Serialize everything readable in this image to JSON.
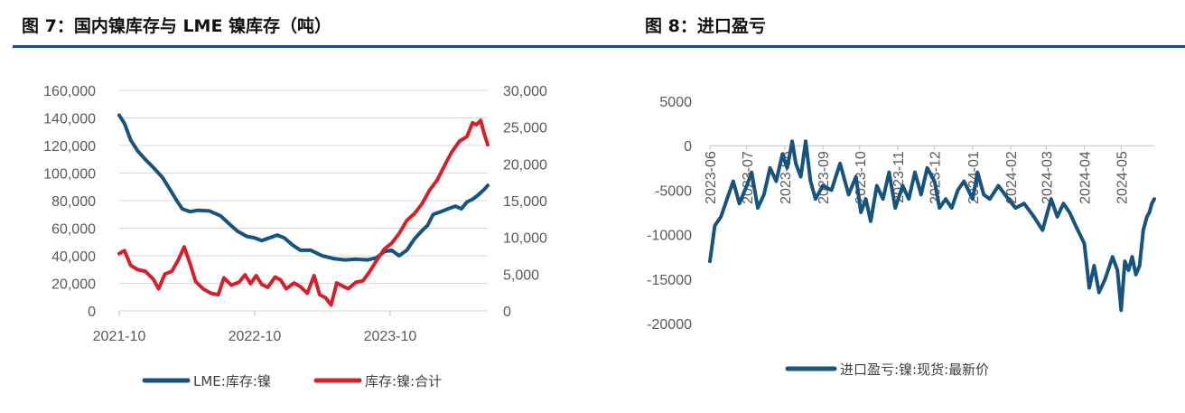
{
  "figure_left": {
    "title": "图 7：国内镍库存与 LME 镍库存（吨）"
  },
  "figure_right": {
    "title": "图 8：进口盈亏"
  },
  "colors": {
    "rule": "#1f4e79",
    "lme": "#16537e",
    "domestic": "#d62029",
    "import": "#16537e",
    "grid": "#d9d9d9"
  },
  "chart_data": [
    {
      "type": "line",
      "title": "图 7：国内镍库存与 LME 镍库存（吨）",
      "x_ticks": [
        "2021-10",
        "2022-10",
        "2023-10"
      ],
      "x_range": [
        "2021-10-01",
        "2024-06-20"
      ],
      "y_left": {
        "ticks": [
          "160,000",
          "140,000",
          "120,000",
          "100,000",
          "80,000",
          "60,000",
          "40,000",
          "20,000",
          "0"
        ],
        "ylim": [
          0,
          160000
        ]
      },
      "y_right": {
        "ticks": [
          "30,000",
          "25,000",
          "20,000",
          "15,000",
          "10,000",
          "5,000",
          "0"
        ],
        "ylim": [
          0,
          30000
        ]
      },
      "grid": "horizontal",
      "legend_position": "bottom",
      "series": [
        {
          "name": "LME:库存:镍",
          "axis": "left",
          "points": [
            [
              "2021-10-01",
              142000
            ],
            [
              "2021-10-15",
              136000
            ],
            [
              "2021-11-01",
              124000
            ],
            [
              "2021-11-20",
              116000
            ],
            [
              "2021-12-10",
              110000
            ],
            [
              "2022-01-01",
              104000
            ],
            [
              "2022-01-25",
              97000
            ],
            [
              "2022-02-15",
              88000
            ],
            [
              "2022-03-05",
              80000
            ],
            [
              "2022-03-20",
              74000
            ],
            [
              "2022-04-10",
              72000
            ],
            [
              "2022-05-01",
              73000
            ],
            [
              "2022-06-01",
              72500
            ],
            [
              "2022-07-01",
              69000
            ],
            [
              "2022-07-25",
              63000
            ],
            [
              "2022-08-15",
              58000
            ],
            [
              "2022-09-10",
              54000
            ],
            [
              "2022-10-01",
              53000
            ],
            [
              "2022-10-20",
              51000
            ],
            [
              "2022-11-10",
              53000
            ],
            [
              "2022-12-01",
              55000
            ],
            [
              "2022-12-20",
              53000
            ],
            [
              "2023-01-10",
              48000
            ],
            [
              "2023-02-01",
              44000
            ],
            [
              "2023-03-01",
              44000
            ],
            [
              "2023-04-01",
              40000
            ],
            [
              "2023-05-01",
              38000
            ],
            [
              "2023-06-01",
              37000
            ],
            [
              "2023-07-01",
              37500
            ],
            [
              "2023-08-01",
              37000
            ],
            [
              "2023-08-25",
              38500
            ],
            [
              "2023-09-15",
              43000
            ],
            [
              "2023-10-05",
              44000
            ],
            [
              "2023-10-25",
              40000
            ],
            [
              "2023-11-15",
              44000
            ],
            [
              "2023-12-05",
              52000
            ],
            [
              "2023-12-25",
              58000
            ],
            [
              "2024-01-10",
              62000
            ],
            [
              "2024-01-25",
              70000
            ],
            [
              "2024-02-15",
              72000
            ],
            [
              "2024-03-05",
              74000
            ],
            [
              "2024-03-25",
              76000
            ],
            [
              "2024-04-10",
              74000
            ],
            [
              "2024-04-25",
              79000
            ],
            [
              "2024-05-10",
              81000
            ],
            [
              "2024-05-25",
              84000
            ],
            [
              "2024-06-10",
              88000
            ],
            [
              "2024-06-20",
              91000
            ]
          ]
        },
        {
          "name": "库存:镍:合计",
          "axis": "right",
          "points": [
            [
              "2021-10-01",
              7800
            ],
            [
              "2021-10-15",
              8200
            ],
            [
              "2021-11-01",
              6200
            ],
            [
              "2021-11-20",
              5600
            ],
            [
              "2021-12-10",
              5400
            ],
            [
              "2022-01-01",
              4300
            ],
            [
              "2022-01-15",
              3000
            ],
            [
              "2022-02-01",
              5000
            ],
            [
              "2022-02-20",
              5400
            ],
            [
              "2022-03-10",
              7000
            ],
            [
              "2022-03-25",
              8700
            ],
            [
              "2022-04-10",
              6400
            ],
            [
              "2022-04-25",
              4000
            ],
            [
              "2022-05-15",
              3000
            ],
            [
              "2022-06-05",
              2400
            ],
            [
              "2022-06-25",
              2200
            ],
            [
              "2022-07-10",
              4500
            ],
            [
              "2022-07-30",
              3500
            ],
            [
              "2022-08-20",
              3900
            ],
            [
              "2022-09-05",
              4900
            ],
            [
              "2022-09-20",
              3700
            ],
            [
              "2022-10-05",
              4800
            ],
            [
              "2022-10-20",
              3600
            ],
            [
              "2022-11-05",
              3200
            ],
            [
              "2022-11-25",
              4600
            ],
            [
              "2022-12-10",
              4200
            ],
            [
              "2022-12-25",
              3000
            ],
            [
              "2023-01-15",
              3800
            ],
            [
              "2023-02-01",
              3300
            ],
            [
              "2023-02-20",
              2400
            ],
            [
              "2023-03-10",
              4800
            ],
            [
              "2023-03-25",
              2200
            ],
            [
              "2023-04-10",
              1800
            ],
            [
              "2023-04-25",
              800
            ],
            [
              "2023-05-10",
              3800
            ],
            [
              "2023-05-25",
              3400
            ],
            [
              "2023-06-10",
              3000
            ],
            [
              "2023-07-01",
              3900
            ],
            [
              "2023-07-20",
              4100
            ],
            [
              "2023-08-05",
              5200
            ],
            [
              "2023-08-25",
              6800
            ],
            [
              "2023-09-15",
              8400
            ],
            [
              "2023-10-05",
              9200
            ],
            [
              "2023-10-25",
              10500
            ],
            [
              "2023-11-15",
              12300
            ],
            [
              "2023-12-05",
              13200
            ],
            [
              "2023-12-25",
              14500
            ],
            [
              "2024-01-15",
              16400
            ],
            [
              "2024-02-05",
              17800
            ],
            [
              "2024-02-25",
              19800
            ],
            [
              "2024-03-15",
              21600
            ],
            [
              "2024-04-05",
              23100
            ],
            [
              "2024-04-25",
              23700
            ],
            [
              "2024-05-10",
              25600
            ],
            [
              "2024-05-20",
              25300
            ],
            [
              "2024-06-01",
              25900
            ],
            [
              "2024-06-10",
              24200
            ],
            [
              "2024-06-20",
              22600
            ]
          ]
        }
      ]
    },
    {
      "type": "line",
      "title": "图 8：进口盈亏",
      "x_ticks": [
        "2023-06",
        "2023-07",
        "2023-08",
        "2023-09",
        "2023-10",
        "2023-11",
        "2023-12",
        "2024-01",
        "2024-02",
        "2024-03",
        "2024-04",
        "2024-05"
      ],
      "x_range": [
        "2023-06-01",
        "2024-05-28"
      ],
      "y": {
        "ticks": [
          "5000",
          "0",
          "-5000",
          "-10000",
          "-15000",
          "-20000"
        ],
        "ylim": [
          -20000,
          5000
        ]
      },
      "grid": "none",
      "legend_position": "bottom",
      "series": [
        {
          "name": "进口盈亏:镍:现货:最新价",
          "points": [
            [
              "2023-06-01",
              -13000
            ],
            [
              "2023-06-05",
              -9000
            ],
            [
              "2023-06-10",
              -8000
            ],
            [
              "2023-06-15",
              -6000
            ],
            [
              "2023-06-20",
              -4000
            ],
            [
              "2023-06-25",
              -6500
            ],
            [
              "2023-07-01",
              -4500
            ],
            [
              "2023-07-05",
              -3000
            ],
            [
              "2023-07-10",
              -7000
            ],
            [
              "2023-07-15",
              -5500
            ],
            [
              "2023-07-20",
              -2500
            ],
            [
              "2023-07-25",
              -4000
            ],
            [
              "2023-07-30",
              -1000
            ],
            [
              "2023-08-03",
              -2500
            ],
            [
              "2023-08-07",
              500
            ],
            [
              "2023-08-10",
              -2000
            ],
            [
              "2023-08-14",
              -3500
            ],
            [
              "2023-08-18",
              500
            ],
            [
              "2023-08-22",
              -4000
            ],
            [
              "2023-08-26",
              -6000
            ],
            [
              "2023-09-01",
              -4500
            ],
            [
              "2023-09-08",
              -5000
            ],
            [
              "2023-09-15",
              -2000
            ],
            [
              "2023-09-22",
              -5500
            ],
            [
              "2023-09-28",
              -3500
            ],
            [
              "2023-10-02",
              -7500
            ],
            [
              "2023-10-06",
              -6000
            ],
            [
              "2023-10-10",
              -8500
            ],
            [
              "2023-10-15",
              -4500
            ],
            [
              "2023-10-20",
              -6000
            ],
            [
              "2023-10-25",
              -3000
            ],
            [
              "2023-10-30",
              -7000
            ],
            [
              "2023-11-05",
              -4500
            ],
            [
              "2023-11-10",
              -6000
            ],
            [
              "2023-11-15",
              -3000
            ],
            [
              "2023-11-20",
              -5500
            ],
            [
              "2023-11-25",
              -2500
            ],
            [
              "2023-12-01",
              -4000
            ],
            [
              "2023-12-05",
              -7000
            ],
            [
              "2023-12-10",
              -6000
            ],
            [
              "2023-12-15",
              -7000
            ],
            [
              "2023-12-20",
              -5000
            ],
            [
              "2023-12-25",
              -4000
            ],
            [
              "2024-01-01",
              -6000
            ],
            [
              "2024-01-05",
              -3000
            ],
            [
              "2024-01-10",
              -5500
            ],
            [
              "2024-01-15",
              -6000
            ],
            [
              "2024-01-22",
              -4500
            ],
            [
              "2024-01-30",
              -6000
            ],
            [
              "2024-02-05",
              -7000
            ],
            [
              "2024-02-12",
              -6500
            ],
            [
              "2024-02-20",
              -8000
            ],
            [
              "2024-02-27",
              -9500
            ],
            [
              "2024-03-05",
              -6000
            ],
            [
              "2024-03-10",
              -8000
            ],
            [
              "2024-03-15",
              -6500
            ],
            [
              "2024-03-20",
              -7500
            ],
            [
              "2024-03-25",
              -9000
            ],
            [
              "2024-04-01",
              -11000
            ],
            [
              "2024-04-05",
              -16000
            ],
            [
              "2024-04-09",
              -13500
            ],
            [
              "2024-04-13",
              -16500
            ],
            [
              "2024-04-18",
              -15000
            ],
            [
              "2024-04-24",
              -12500
            ],
            [
              "2024-04-28",
              -14000
            ],
            [
              "2024-05-01",
              -18500
            ],
            [
              "2024-05-04",
              -13000
            ],
            [
              "2024-05-07",
              -14000
            ],
            [
              "2024-05-10",
              -12500
            ],
            [
              "2024-05-13",
              -14500
            ],
            [
              "2024-05-16",
              -13500
            ],
            [
              "2024-05-19",
              -9500
            ],
            [
              "2024-05-22",
              -8000
            ],
            [
              "2024-05-24",
              -7500
            ],
            [
              "2024-05-26",
              -6500
            ],
            [
              "2024-05-28",
              -6000
            ]
          ]
        }
      ]
    }
  ]
}
